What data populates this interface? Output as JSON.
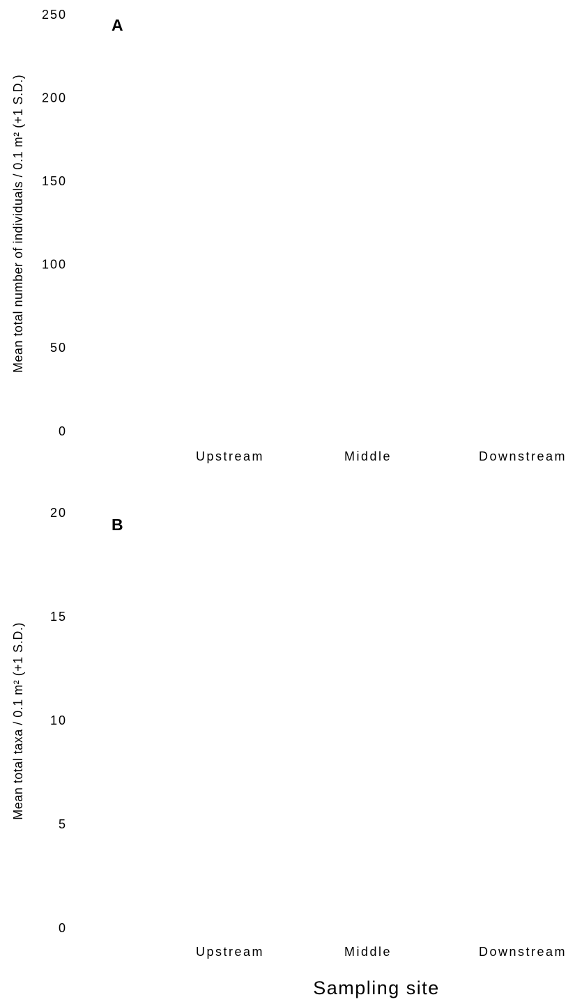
{
  "chart_data": [
    {
      "type": "bar",
      "title": "A",
      "ylabel": "Mean total number of individuals / 0.1 m² (+1 S.D.)",
      "categories": [
        "Upstream",
        "Middle",
        "Downstream"
      ],
      "ylim": [
        0,
        250
      ],
      "yticks": [
        0,
        50,
        100,
        150,
        200,
        250
      ]
    },
    {
      "type": "bar",
      "title": "B",
      "ylabel": "Mean total taxa / 0.1 m² (+1 S.D.)",
      "xlabel": "Sampling site",
      "categories": [
        "Upstream",
        "Middle",
        "Downstream"
      ],
      "ylim": [
        0,
        20
      ],
      "yticks": [
        0,
        5,
        10,
        15,
        20
      ]
    }
  ]
}
